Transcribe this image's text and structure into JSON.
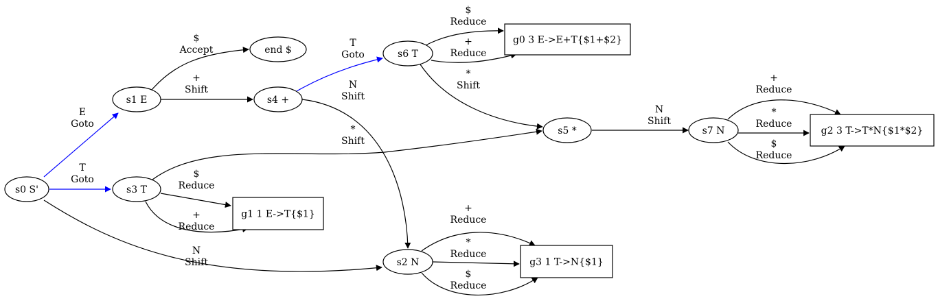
{
  "colors": {
    "normal_edge": "#000000",
    "goto_edge": "#0000ff",
    "node_stroke": "#000000",
    "background": "#ffffff"
  },
  "nodes": [
    {
      "id": "s0",
      "label": "s0 S'",
      "shape": "ellipse"
    },
    {
      "id": "s1",
      "label": "s1 E",
      "shape": "ellipse"
    },
    {
      "id": "s2",
      "label": "s2 N",
      "shape": "ellipse"
    },
    {
      "id": "s3",
      "label": "s3 T",
      "shape": "ellipse"
    },
    {
      "id": "s4",
      "label": "s4 +",
      "shape": "ellipse"
    },
    {
      "id": "s5",
      "label": "s5 *",
      "shape": "ellipse"
    },
    {
      "id": "s6",
      "label": "s6 T",
      "shape": "ellipse"
    },
    {
      "id": "s7",
      "label": "s7 N",
      "shape": "ellipse"
    },
    {
      "id": "end",
      "label": "end $",
      "shape": "ellipse"
    },
    {
      "id": "g0",
      "label": "g0 3 E->E+T{$1+$2}",
      "shape": "box"
    },
    {
      "id": "g1",
      "label": "g1 1 E->T{$1}",
      "shape": "box"
    },
    {
      "id": "g2",
      "label": "g2 3 T->T*N{$1*$2}",
      "shape": "box"
    },
    {
      "id": "g3",
      "label": "g3 1 T->N{$1}",
      "shape": "box"
    }
  ],
  "edges": [
    {
      "id": "s0-s1",
      "from": "s0",
      "to": "s1",
      "symbol": "E",
      "action": "Goto",
      "kind": "goto"
    },
    {
      "id": "s0-s3",
      "from": "s0",
      "to": "s3",
      "symbol": "T",
      "action": "Goto",
      "kind": "goto"
    },
    {
      "id": "s0-s2",
      "from": "s0",
      "to": "s2",
      "symbol": "N",
      "action": "Shift",
      "kind": "normal"
    },
    {
      "id": "s1-end",
      "from": "s1",
      "to": "end",
      "symbol": "$",
      "action": "Accept",
      "kind": "normal"
    },
    {
      "id": "s1-s4",
      "from": "s1",
      "to": "s4",
      "symbol": "+",
      "action": "Shift",
      "kind": "normal"
    },
    {
      "id": "s4-s6",
      "from": "s4",
      "to": "s6",
      "symbol": "T",
      "action": "Goto",
      "kind": "goto"
    },
    {
      "id": "s4-s2",
      "from": "s4",
      "to": "s2",
      "symbol": "N",
      "action": "Shift",
      "kind": "normal"
    },
    {
      "id": "s3-s5",
      "from": "s3",
      "to": "s5",
      "symbol": "*",
      "action": "Shift",
      "kind": "normal"
    },
    {
      "id": "s3-g1-dollar",
      "from": "s3",
      "to": "g1",
      "symbol": "$",
      "action": "Reduce",
      "kind": "normal"
    },
    {
      "id": "s3-g1-plus",
      "from": "s3",
      "to": "g1",
      "symbol": "+",
      "action": "Reduce",
      "kind": "normal"
    },
    {
      "id": "s6-g0-dollar",
      "from": "s6",
      "to": "g0",
      "symbol": "$",
      "action": "Reduce",
      "kind": "normal"
    },
    {
      "id": "s6-g0-plus",
      "from": "s6",
      "to": "g0",
      "symbol": "+",
      "action": "Reduce",
      "kind": "normal"
    },
    {
      "id": "s6-s5",
      "from": "s6",
      "to": "s5",
      "symbol": "*",
      "action": "Shift",
      "kind": "normal"
    },
    {
      "id": "s5-s7",
      "from": "s5",
      "to": "s7",
      "symbol": "N",
      "action": "Shift",
      "kind": "normal"
    },
    {
      "id": "s7-g2-plus",
      "from": "s7",
      "to": "g2",
      "symbol": "+",
      "action": "Reduce",
      "kind": "normal"
    },
    {
      "id": "s7-g2-star",
      "from": "s7",
      "to": "g2",
      "symbol": "*",
      "action": "Reduce",
      "kind": "normal"
    },
    {
      "id": "s7-g2-dollar",
      "from": "s7",
      "to": "g2",
      "symbol": "$",
      "action": "Reduce",
      "kind": "normal"
    },
    {
      "id": "s2-g3-plus",
      "from": "s2",
      "to": "g3",
      "symbol": "+",
      "action": "Reduce",
      "kind": "normal"
    },
    {
      "id": "s2-g3-star",
      "from": "s2",
      "to": "g3",
      "symbol": "*",
      "action": "Reduce",
      "kind": "normal"
    },
    {
      "id": "s2-g3-dollar",
      "from": "s2",
      "to": "g3",
      "symbol": "$",
      "action": "Reduce",
      "kind": "normal"
    }
  ]
}
